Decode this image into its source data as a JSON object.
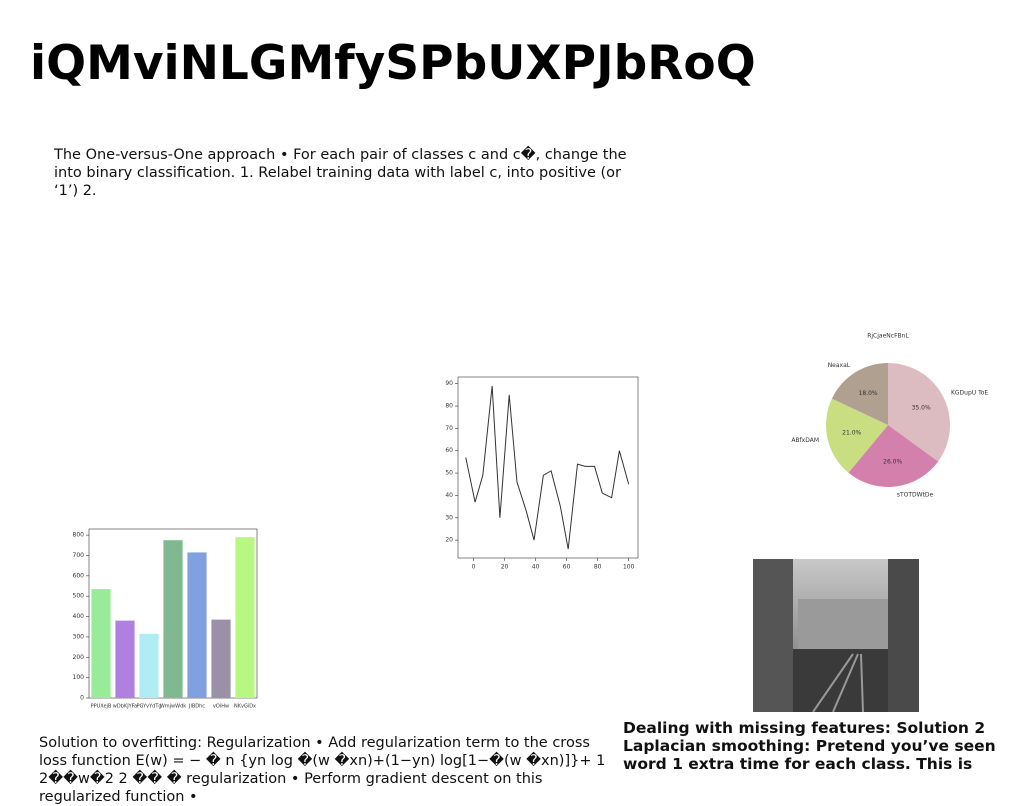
{
  "title": "iQMviNLGMfySPbUXPJbRoQ",
  "paragraphs": [
    "The One-versus-One approach • For each pair of classes c and c�, change the into binary classification. 1. Relabel training data with label c, into positive (or ‘1’) 2.",
    "Solution to overfitting: Regularization • Add regularization term to the cross loss function E(w) = − � n {yn log �(w �xn)+(1−yn) log[1−�(w �xn)]}+ 1 2��w�2 2 �� � regularization • Perform gradient descent on this regularized function •",
    "Dealing with missing features: Solution 2 Laplacian smoothing: Pretend you’ve seen word 1 extra time for each class. This is"
  ],
  "chart_data": [
    {
      "type": "bar",
      "categories": [
        "PPUXejB",
        "wDbKJYFa",
        "PGYvYdTg",
        "WmjwWdk",
        "JlBDhc",
        "vOiHw",
        "NKvGiDx"
      ],
      "values": [
        535,
        380,
        315,
        775,
        715,
        385,
        790
      ],
      "colors": [
        "#98ec98",
        "#b080e0",
        "#b0ecf4",
        "#80b890",
        "#80a0e0",
        "#9c90a8",
        "#b8f880"
      ],
      "ylim": [
        0,
        830
      ],
      "yticks": [
        0,
        100,
        200,
        300,
        400,
        500,
        600,
        700,
        800
      ]
    },
    {
      "type": "line",
      "x": [
        -5,
        1,
        6,
        12,
        17,
        23,
        28,
        34,
        39,
        45,
        50,
        56,
        61,
        67,
        72,
        78,
        83,
        89,
        94,
        100
      ],
      "values": [
        57,
        37,
        49,
        89,
        30,
        85,
        46,
        33,
        20,
        49,
        51,
        35,
        16,
        54,
        53,
        53,
        41,
        39,
        60,
        45
      ],
      "color": "#333333",
      "xlim": [
        -10,
        106
      ],
      "ylim": [
        12,
        93
      ],
      "xticks": [
        0,
        20,
        40,
        60,
        80,
        100
      ],
      "yticks": [
        20,
        30,
        40,
        50,
        60,
        70,
        80,
        90
      ]
    },
    {
      "type": "pie",
      "title": "RjCjaeNcFBnL",
      "categories": [
        "KGDupU ToE",
        "sTOTDWtDe",
        "ABfxDAM",
        "NeaxaL"
      ],
      "values": [
        35,
        26,
        21,
        18
      ],
      "value_labels": [
        "35.0%",
        "26.0%",
        "21.0%",
        "18.0%"
      ],
      "colors": [
        "#dcbcc0",
        "#d480ac",
        "#c8de80",
        "#b0a090"
      ]
    }
  ]
}
